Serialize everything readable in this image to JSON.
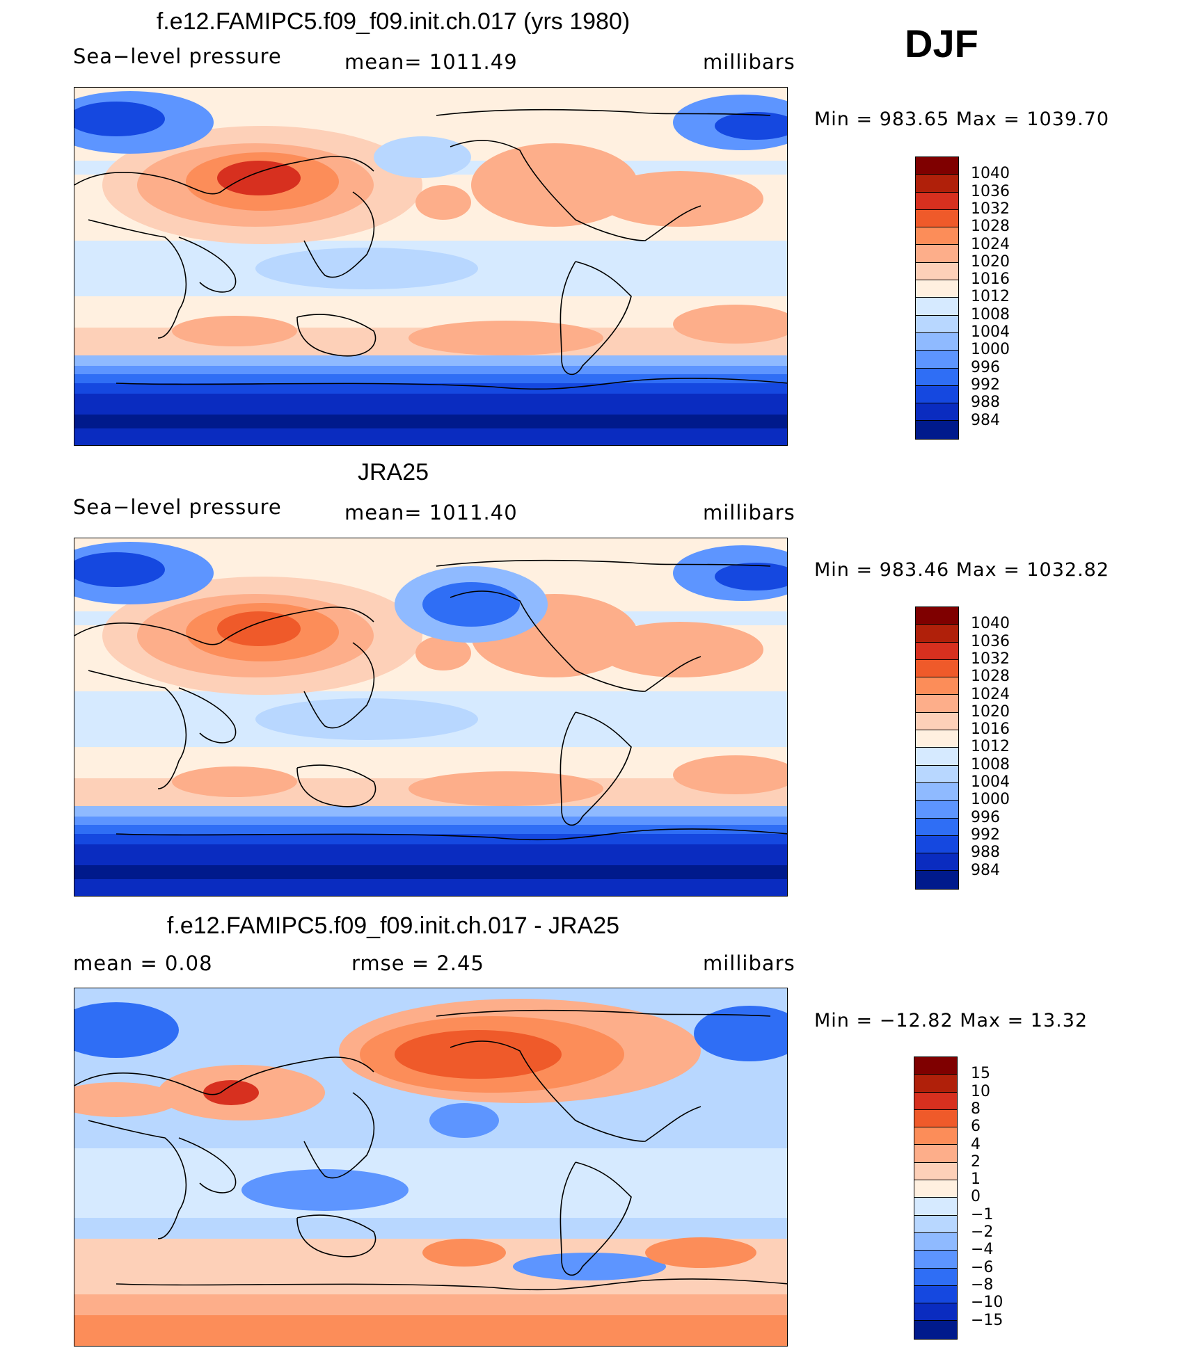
{
  "season": "DJF",
  "panels": [
    {
      "title": "f.e12.FAMIPC5.f09_f09.init.ch.017 (yrs 1980)",
      "variable": "Sea−level pressure",
      "stat1": "mean=  1011.49",
      "stat2": "",
      "units": "millibars",
      "minmax": "Min  =  983.65  Max  =  1039.70",
      "kind": "slp",
      "colors": [
        "#7f0000",
        "#b0200a",
        "#d7301f",
        "#ef5a2a",
        "#fc8d59",
        "#fdae8a",
        "#fdd0b8",
        "#fff0e0",
        "#d6eaff",
        "#b8d7ff",
        "#8fbaff",
        "#5d95ff",
        "#2f6ef5",
        "#1548e0",
        "#0a2cc0",
        "#001a8c"
      ],
      "labels": [
        "1040",
        "1036",
        "1032",
        "1028",
        "1024",
        "1020",
        "1016",
        "1012",
        "1008",
        "1004",
        "1000",
        "996",
        "992",
        "988",
        "984"
      ]
    },
    {
      "title": "JRA25",
      "variable": "Sea−level pressure",
      "stat1": "mean=  1011.40",
      "stat2": "",
      "units": "millibars",
      "minmax": "Min  =  983.46  Max  =  1032.82",
      "kind": "slp",
      "colors": [
        "#7f0000",
        "#b0200a",
        "#d7301f",
        "#ef5a2a",
        "#fc8d59",
        "#fdae8a",
        "#fdd0b8",
        "#fff0e0",
        "#d6eaff",
        "#b8d7ff",
        "#8fbaff",
        "#5d95ff",
        "#2f6ef5",
        "#1548e0",
        "#0a2cc0",
        "#001a8c"
      ],
      "labels": [
        "1040",
        "1036",
        "1032",
        "1028",
        "1024",
        "1020",
        "1016",
        "1012",
        "1008",
        "1004",
        "1000",
        "996",
        "992",
        "988",
        "984"
      ]
    },
    {
      "title": "f.e12.FAMIPC5.f09_f09.init.ch.017 - JRA25",
      "variable": "mean  =      0.08",
      "stat1": "rmse  =      2.45",
      "stat2": "",
      "units": "millibars",
      "minmax": "Min  =  −12.82  Max  =     13.32",
      "kind": "diff",
      "colors": [
        "#7f0000",
        "#b0200a",
        "#d7301f",
        "#ef5a2a",
        "#fc8d59",
        "#fdae8a",
        "#fdd0b8",
        "#fff0e0",
        "#d6eaff",
        "#b8d7ff",
        "#8fbaff",
        "#5d95ff",
        "#2f6ef5",
        "#1548e0",
        "#0a2cc0",
        "#001a8c"
      ],
      "labels": [
        "15",
        "10",
        "8",
        "6",
        "4",
        "2",
        "1",
        "0",
        "−1",
        "−2",
        "−4",
        "−6",
        "−8",
        "−10",
        "−15"
      ]
    }
  ]
}
